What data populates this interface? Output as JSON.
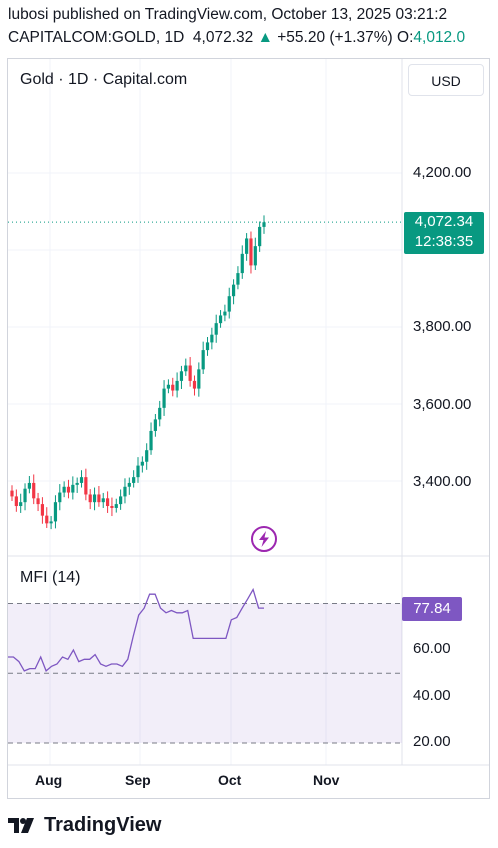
{
  "header": {
    "line1": "lubosi published on TradingView.com, October 13, 2025 03:21:2",
    "symbol": "CAPITALCOM:GOLD, 1D",
    "price": "4,072.32",
    "change": "+55.20 (+1.37%)",
    "open_label": "O:",
    "open_value": "4,012.0"
  },
  "chart": {
    "title": "Gold · 1D · Capital.com",
    "currency_button": "USD",
    "price_tag": {
      "price": "4,072.34",
      "countdown": "12:38:35"
    },
    "y_axis": [
      "4,200.00",
      "3,800.00",
      "3,600.00",
      "3,400.00"
    ],
    "x_axis": [
      "Aug",
      "Sep",
      "Oct",
      "Nov"
    ],
    "colors": {
      "up": "#089981",
      "down": "#f23645",
      "mfi": "#7e57c2"
    }
  },
  "mfi": {
    "title": "MFI (14)",
    "value_tag": "77.84",
    "y_axis": [
      "60.00",
      "40.00",
      "20.00"
    ],
    "upper_band": 80,
    "lower_band": 20
  },
  "footer": {
    "brand": "TradingView"
  },
  "chart_data": [
    {
      "type": "candlestick",
      "title": "Gold · 1D · Capital.com",
      "ylim": [
        3250,
        4330
      ],
      "last_price": 4072.34,
      "series": [
        {
          "name": "GOLD",
          "values": [
            3360,
            3335,
            3345,
            3380,
            3395,
            3355,
            3340,
            3310,
            3290,
            3295,
            3345,
            3370,
            3385,
            3370,
            3390,
            3395,
            3410,
            3365,
            3345,
            3365,
            3345,
            3355,
            3335,
            3330,
            3340,
            3360,
            3385,
            3395,
            3410,
            3440,
            3450,
            3480,
            3530,
            3560,
            3590,
            3640,
            3650,
            3635,
            3660,
            3685,
            3700,
            3660,
            3640,
            3690,
            3740,
            3760,
            3780,
            3810,
            3830,
            3840,
            3880,
            3910,
            3940,
            3990,
            4030,
            3960,
            4010,
            4060,
            4072
          ]
        }
      ]
    },
    {
      "type": "line",
      "title": "MFI (14)",
      "ylim": [
        20,
        84
      ],
      "series": [
        {
          "name": "MFI (14)",
          "values": [
            57,
            57,
            55,
            51,
            52,
            52,
            57,
            51,
            53,
            54,
            57,
            56,
            60,
            55,
            56,
            56,
            58,
            54,
            53,
            54,
            54,
            53,
            56,
            66,
            75,
            78,
            84,
            84,
            78,
            76,
            77,
            76,
            76,
            77,
            65,
            65,
            65,
            65,
            65,
            65,
            65,
            73,
            74,
            78,
            82,
            86,
            78,
            78
          ]
        }
      ]
    }
  ]
}
